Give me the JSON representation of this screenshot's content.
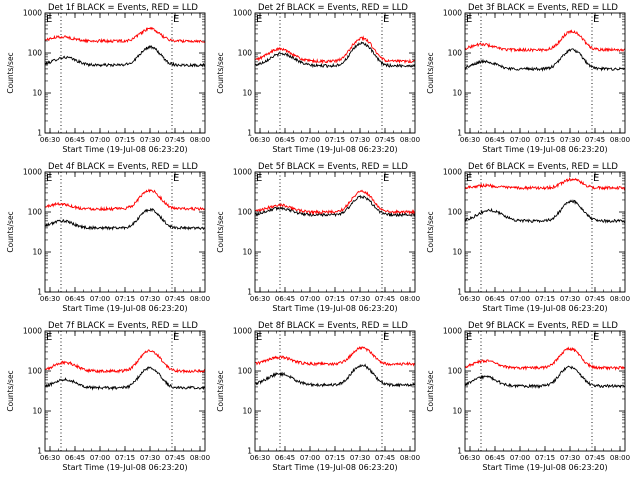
{
  "figure": {
    "x_range_hours": [
      6.45,
      8.05
    ],
    "x_tick_hours": [
      6.5,
      6.75,
      7.0,
      7.25,
      7.5,
      7.75,
      8.0
    ],
    "y_range": [
      1,
      1000
    ],
    "y_tick_values": [
      1,
      10,
      100,
      1000
    ],
    "colors": {
      "events": "#000000",
      "lld": "#ff0000",
      "axes": "#000000"
    }
  },
  "chart_data": [
    {
      "type": "line",
      "title": "Det 1f BLACK = Events, RED = LLD",
      "xlabel": "Start Time (19-Jul-08 06:23:20)",
      "ylabel": "Counts/sec",
      "xticks": [
        "06:30",
        "06:45",
        "07:00",
        "07:15",
        "07:30",
        "07:45",
        "08:00"
      ],
      "yticks": [
        "1",
        "10",
        "100",
        "1000"
      ],
      "flags": [
        "E",
        "E"
      ],
      "flag_times_hours": [
        6.61,
        7.72
      ],
      "series": [
        {
          "name": "Events",
          "color": "#000000",
          "base": 50,
          "peak1": 78,
          "t1": 6.65,
          "w1": 0.1,
          "peak2": 140,
          "t2": 7.5,
          "w2": 0.085
        },
        {
          "name": "LLD",
          "color": "#ff0000",
          "base": 200,
          "peak1": 255,
          "t1": 6.62,
          "w1": 0.1,
          "peak2": 400,
          "t2": 7.5,
          "w2": 0.085
        }
      ]
    },
    {
      "type": "line",
      "title": "Det 2f BLACK = Events, RED = LLD",
      "xlabel": "Start Time (19-Jul-08 06:23:20)",
      "ylabel": "Counts/sec",
      "xticks": [
        "06:30",
        "06:45",
        "07:00",
        "07:15",
        "07:30",
        "07:45",
        "08:00"
      ],
      "yticks": [
        "1",
        "10",
        "100",
        "1000"
      ],
      "flags": [
        "E",
        "E"
      ],
      "flag_times_hours": [
        6.7,
        7.72
      ],
      "series": [
        {
          "name": "Events",
          "color": "#000000",
          "base": 48,
          "peak1": 95,
          "t1": 6.72,
          "w1": 0.11,
          "peak2": 175,
          "t2": 7.52,
          "w2": 0.085
        },
        {
          "name": "LLD",
          "color": "#ff0000",
          "base": 62,
          "peak1": 125,
          "t1": 6.7,
          "w1": 0.11,
          "peak2": 235,
          "t2": 7.52,
          "w2": 0.085
        }
      ]
    },
    {
      "type": "line",
      "title": "Det 3f BLACK = Events, RED = LLD",
      "xlabel": "Start Time (19-Jul-08 06:23:20)",
      "ylabel": "Counts/sec",
      "xticks": [
        "06:30",
        "06:45",
        "07:00",
        "07:15",
        "07:30",
        "07:45",
        "08:00"
      ],
      "yticks": [
        "1",
        "10",
        "100",
        "1000"
      ],
      "flags": [
        "E",
        "E"
      ],
      "flag_times_hours": [
        6.61,
        7.72
      ],
      "series": [
        {
          "name": "Events",
          "color": "#000000",
          "base": 40,
          "peak1": 62,
          "t1": 6.65,
          "w1": 0.1,
          "peak2": 120,
          "t2": 7.52,
          "w2": 0.085
        },
        {
          "name": "LLD",
          "color": "#ff0000",
          "base": 120,
          "peak1": 165,
          "t1": 6.62,
          "w1": 0.1,
          "peak2": 350,
          "t2": 7.52,
          "w2": 0.085
        }
      ]
    },
    {
      "type": "line",
      "title": "Det 4f BLACK = Events, RED = LLD",
      "xlabel": "Start Time (19-Jul-08 06:23:20)",
      "ylabel": "Counts/sec",
      "xticks": [
        "06:30",
        "06:45",
        "07:00",
        "07:15",
        "07:30",
        "07:45",
        "08:00"
      ],
      "yticks": [
        "1",
        "10",
        "100",
        "1000"
      ],
      "flags": [
        "E",
        "E"
      ],
      "flag_times_hours": [
        6.61,
        7.72
      ],
      "series": [
        {
          "name": "Events",
          "color": "#000000",
          "base": 40,
          "peak1": 60,
          "t1": 6.62,
          "w1": 0.1,
          "peak2": 115,
          "t2": 7.5,
          "w2": 0.085
        },
        {
          "name": "LLD",
          "color": "#ff0000",
          "base": 120,
          "peak1": 160,
          "t1": 6.6,
          "w1": 0.1,
          "peak2": 350,
          "t2": 7.5,
          "w2": 0.085
        }
      ]
    },
    {
      "type": "line",
      "title": "Det 5f BLACK = Events, RED = LLD",
      "xlabel": "Start Time (19-Jul-08 06:23:20)",
      "ylabel": "Counts/sec",
      "xticks": [
        "06:30",
        "06:45",
        "07:00",
        "07:15",
        "07:30",
        "07:45",
        "08:00"
      ],
      "yticks": [
        "1",
        "10",
        "100",
        "1000"
      ],
      "flags": [
        "E",
        "E"
      ],
      "flag_times_hours": [
        6.7,
        7.72
      ],
      "series": [
        {
          "name": "Events",
          "color": "#000000",
          "base": 85,
          "peak1": 125,
          "t1": 6.7,
          "w1": 0.11,
          "peak2": 240,
          "t2": 7.52,
          "w2": 0.085
        },
        {
          "name": "LLD",
          "color": "#ff0000",
          "base": 100,
          "peak1": 150,
          "t1": 6.7,
          "w1": 0.11,
          "peak2": 330,
          "t2": 7.52,
          "w2": 0.085
        }
      ]
    },
    {
      "type": "line",
      "title": "Det 6f BLACK = Events, RED = LLD",
      "xlabel": "Start Time (19-Jul-08 06:23:20)",
      "ylabel": "Counts/sec",
      "xticks": [
        "06:30",
        "06:45",
        "07:00",
        "07:15",
        "07:30",
        "07:45",
        "08:00"
      ],
      "yticks": [
        "1",
        "10",
        "100",
        "1000"
      ],
      "flags": [
        "E",
        "E"
      ],
      "flag_times_hours": [
        6.61,
        7.72
      ],
      "series": [
        {
          "name": "Events",
          "color": "#000000",
          "base": 60,
          "peak1": 110,
          "t1": 6.7,
          "w1": 0.11,
          "peak2": 185,
          "t2": 7.52,
          "w2": 0.085
        },
        {
          "name": "LLD",
          "color": "#ff0000",
          "base": 400,
          "peak1": 460,
          "t1": 6.65,
          "w1": 0.11,
          "peak2": 660,
          "t2": 7.52,
          "w2": 0.085
        }
      ]
    },
    {
      "type": "line",
      "title": "Det 7f BLACK = Events, RED = LLD",
      "xlabel": "Start Time (19-Jul-08 06:23:20)",
      "ylabel": "Counts/sec",
      "xticks": [
        "06:30",
        "06:45",
        "07:00",
        "07:15",
        "07:30",
        "07:45",
        "08:00"
      ],
      "yticks": [
        "1",
        "10",
        "100",
        "1000"
      ],
      "flags": [
        "E",
        "E"
      ],
      "flag_times_hours": [
        6.61,
        7.72
      ],
      "series": [
        {
          "name": "Events",
          "color": "#000000",
          "base": 38,
          "peak1": 62,
          "t1": 6.65,
          "w1": 0.1,
          "peak2": 120,
          "t2": 7.5,
          "w2": 0.085
        },
        {
          "name": "LLD",
          "color": "#ff0000",
          "base": 100,
          "peak1": 165,
          "t1": 6.65,
          "w1": 0.1,
          "peak2": 320,
          "t2": 7.5,
          "w2": 0.085
        }
      ]
    },
    {
      "type": "line",
      "title": "Det 8f BLACK = Events, RED = LLD",
      "xlabel": "Start Time (19-Jul-08 06:23:20)",
      "ylabel": "Counts/sec",
      "xticks": [
        "06:30",
        "06:45",
        "07:00",
        "07:15",
        "07:30",
        "07:45",
        "08:00"
      ],
      "yticks": [
        "1",
        "10",
        "100",
        "1000"
      ],
      "flags": [
        "E",
        "E"
      ],
      "flag_times_hours": [
        6.7,
        7.72
      ],
      "series": [
        {
          "name": "Events",
          "color": "#000000",
          "base": 45,
          "peak1": 85,
          "t1": 6.7,
          "w1": 0.11,
          "peak2": 140,
          "t2": 7.52,
          "w2": 0.085
        },
        {
          "name": "LLD",
          "color": "#ff0000",
          "base": 150,
          "peak1": 220,
          "t1": 6.7,
          "w1": 0.11,
          "peak2": 380,
          "t2": 7.52,
          "w2": 0.085
        }
      ]
    },
    {
      "type": "line",
      "title": "Det 9f BLACK = Events, RED = LLD",
      "xlabel": "Start Time (19-Jul-08 06:23:20)",
      "ylabel": "Counts/sec",
      "xticks": [
        "06:30",
        "06:45",
        "07:00",
        "07:15",
        "07:30",
        "07:45",
        "08:00"
      ],
      "yticks": [
        "1",
        "10",
        "100",
        "1000"
      ],
      "flags": [
        "E",
        "E"
      ],
      "flag_times_hours": [
        6.61,
        7.72
      ],
      "series": [
        {
          "name": "Events",
          "color": "#000000",
          "base": 42,
          "peak1": 72,
          "t1": 6.65,
          "w1": 0.1,
          "peak2": 125,
          "t2": 7.5,
          "w2": 0.085
        },
        {
          "name": "LLD",
          "color": "#ff0000",
          "base": 120,
          "peak1": 180,
          "t1": 6.65,
          "w1": 0.1,
          "peak2": 360,
          "t2": 7.5,
          "w2": 0.085
        }
      ]
    }
  ]
}
